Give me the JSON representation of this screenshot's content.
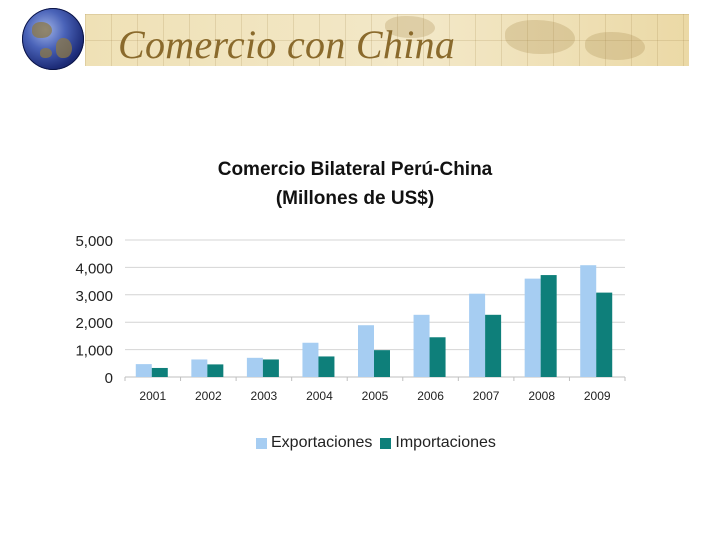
{
  "slide": {
    "title": "Comercio con China"
  },
  "chart_data": {
    "type": "bar",
    "title": "Comercio Bilateral Perú-China",
    "subtitle": "(Millones de US$)",
    "categories": [
      "2001",
      "2002",
      "2003",
      "2004",
      "2005",
      "2006",
      "2007",
      "2008",
      "2009"
    ],
    "series": [
      {
        "name": "Exportaciones",
        "color": "#a6cdf2",
        "values": [
          470,
          640,
          700,
          1250,
          1890,
          2270,
          3040,
          3590,
          4080
        ]
      },
      {
        "name": "Importaciones",
        "color": "#0e7f7a",
        "values": [
          330,
          460,
          640,
          750,
          980,
          1450,
          2270,
          3720,
          3080
        ]
      }
    ],
    "ylim": [
      0,
      5000
    ],
    "yticks": [
      "0",
      "1,000",
      "2,000",
      "3,000",
      "4,000",
      "5,000"
    ],
    "grid": true,
    "legend_position": "bottom",
    "xlabel": "",
    "ylabel": ""
  }
}
